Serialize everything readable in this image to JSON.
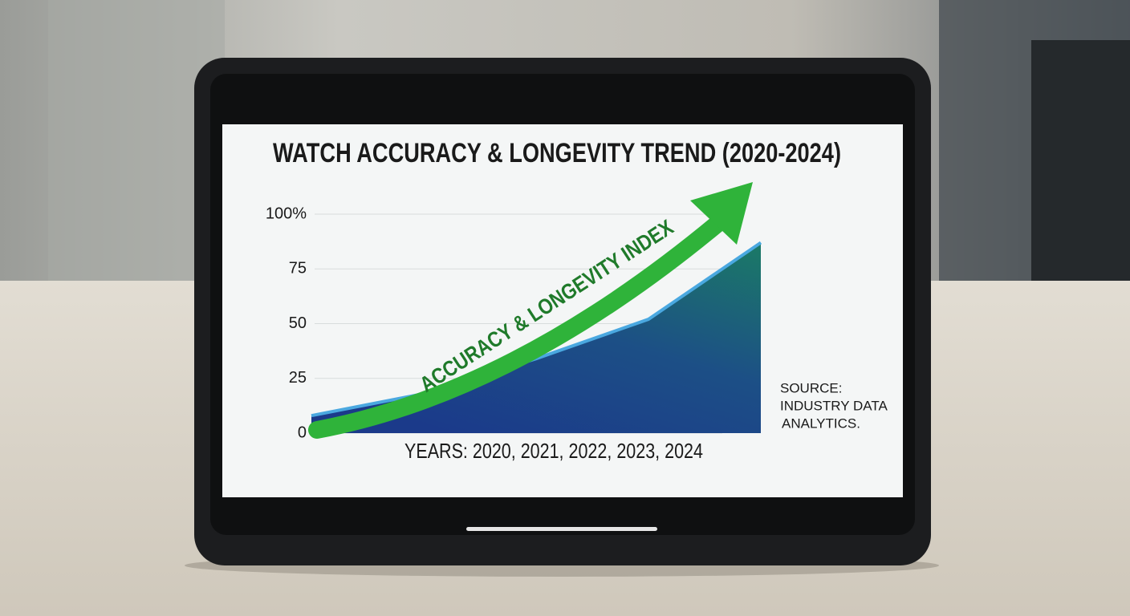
{
  "chart_data": {
    "type": "area",
    "title": "WATCH ACCURACY & LONGEVITY TREND (2020-2024)",
    "annotation": "ACCURACY & LONGEVITY INDEX",
    "x_label": "YEARS: 2020, 2021, 2022, 2023, 2024",
    "source": [
      "SOURCE:",
      "INDUSTRY DATA",
      "ANALYTICS."
    ],
    "x": [
      2020,
      2021,
      2022,
      2023,
      2024
    ],
    "xlim": [
      2020,
      2024
    ],
    "values": [
      8,
      18,
      34,
      52,
      87
    ],
    "color": "#1b3f8a",
    "line_color": "#4aa8e0",
    "ylim": [
      0,
      100
    ],
    "yticks": [
      0,
      25,
      50,
      75,
      {
        "value": 100,
        "label": "100%"
      }
    ],
    "grid": true
  }
}
